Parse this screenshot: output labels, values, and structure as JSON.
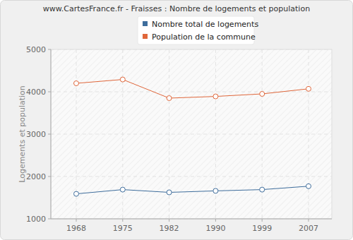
{
  "chart_data": {
    "type": "line",
    "title": "www.CartesFrance.fr - Fraisses : Nombre de logements et population",
    "y_label": "Logements et population",
    "categories": [
      "1968",
      "1975",
      "1982",
      "1990",
      "1999",
      "2007"
    ],
    "series": [
      {
        "name": "Nombre total de logements",
        "color": "#3e6d9c",
        "marker": "circle",
        "values": [
          1590,
          1690,
          1625,
          1660,
          1690,
          1770
        ]
      },
      {
        "name": "Population de la commune",
        "color": "#e0673b",
        "marker": "circle",
        "values": [
          4200,
          4290,
          3850,
          3890,
          3950,
          4070
        ]
      }
    ],
    "ylim": [
      1000,
      5000
    ],
    "yticks": [
      1000,
      2000,
      3000,
      4000,
      5000
    ],
    "grid": true,
    "legend": "top"
  }
}
